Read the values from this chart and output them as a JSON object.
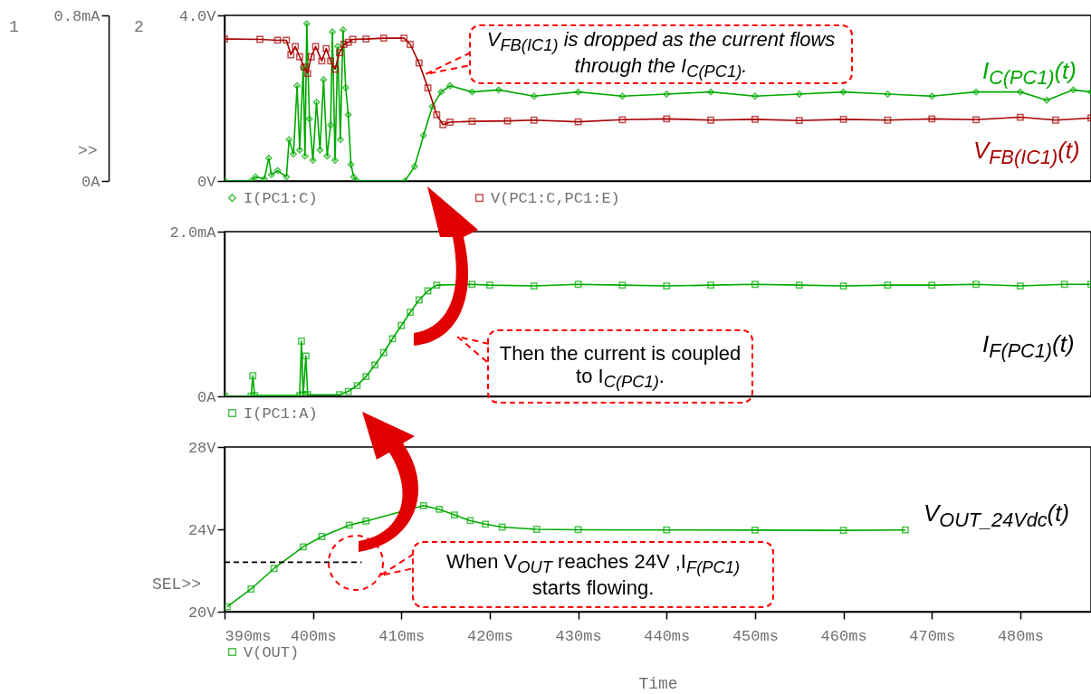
{
  "chart_data": [
    {
      "type": "line",
      "xlim": [
        390,
        488
      ],
      "tick_labels": "y",
      "legend": "bottom left",
      "ylim": [
        0,
        0.8
      ],
      "yticks": [
        {
          "value": 0,
          "label": "0A"
        },
        {
          "value": 0.8,
          "label": "0.8mA"
        }
      ],
      "y2lim": [
        0,
        4
      ],
      "y2ticks": [
        {
          "value": 0,
          "label": "0V"
        },
        {
          "value": 4,
          "label": "4.0V"
        }
      ],
      "series": [
        {
          "name": "I(PC1:C)",
          "color": "#00aa00",
          "marker": "diamond",
          "x": [
            390,
            393,
            393.5,
            394.5,
            395,
            395.3,
            396,
            397,
            397.3,
            397.8,
            398.2,
            398.5,
            398.9,
            399.1,
            399.3,
            399.6,
            400,
            400.4,
            400.8,
            401.2,
            401.6,
            402,
            402.2,
            402.5,
            402.8,
            403.1,
            403.4,
            403.7,
            404,
            404.3,
            404.6,
            405,
            410.4,
            411.5,
            412.5,
            413.5,
            414.5,
            415.5,
            418,
            421,
            425,
            430,
            435,
            440,
            445,
            450,
            455,
            460,
            465,
            470,
            475,
            480,
            483,
            486,
            488
          ],
          "values": [
            0,
            0,
            0.02,
            0.01,
            0.11,
            0.03,
            0.05,
            0.02,
            0.2,
            0.13,
            0.46,
            0.15,
            0.55,
            0.12,
            0.76,
            0.3,
            0.1,
            0.38,
            0.15,
            0.49,
            0.12,
            0.27,
            0.72,
            0.1,
            0.65,
            0.2,
            0.73,
            0.45,
            0.32,
            0.08,
            0.02,
            0,
            0,
            0.07,
            0.22,
            0.36,
            0.43,
            0.46,
            0.43,
            0.44,
            0.41,
            0.43,
            0.41,
            0.42,
            0.43,
            0.41,
            0.42,
            0.43,
            0.42,
            0.41,
            0.43,
            0.43,
            0.39,
            0.44,
            0.43
          ]
        },
        {
          "name": "V(PC1:C,PC1:E)",
          "color": "#aa0000",
          "marker": "square",
          "axis": "y2",
          "x": [
            390,
            394,
            396,
            397,
            397.5,
            398,
            398.5,
            399,
            399.4,
            399.8,
            400.3,
            401,
            401.5,
            402,
            402.5,
            403,
            403.5,
            404,
            404.5,
            406,
            408,
            410.3,
            411,
            412,
            413,
            414,
            414.7,
            415.5,
            418,
            422,
            425,
            430,
            435,
            440,
            445,
            450,
            455,
            460,
            465,
            470,
            475,
            480,
            484,
            488
          ],
          "values": [
            3.43,
            3.42,
            3.4,
            3.4,
            3.05,
            3.25,
            3.0,
            2.75,
            2.6,
            3.0,
            3.25,
            2.9,
            3.2,
            2.9,
            2.7,
            3.1,
            3.3,
            3.35,
            3.42,
            3.43,
            3.45,
            3.45,
            3.3,
            2.85,
            2.25,
            1.6,
            1.36,
            1.42,
            1.44,
            1.45,
            1.47,
            1.43,
            1.48,
            1.5,
            1.47,
            1.49,
            1.46,
            1.49,
            1.47,
            1.5,
            1.48,
            1.54,
            1.47,
            1.52
          ]
        }
      ],
      "annotations": [
        "1",
        "2",
        ">>",
        "V$_{FB(IC1)}$ is dropped as the current flows through the I$_{C(PC1)}$.",
        "I$_{C(PC1)}$(t)",
        "V$_{FB(IC1)}$(t)"
      ]
    },
    {
      "type": "line",
      "xlim": [
        390,
        488
      ],
      "tick_labels": "y",
      "legend": "bottom left",
      "ylim": [
        0,
        2
      ],
      "yticks": [
        {
          "value": 0,
          "label": "0A"
        },
        {
          "value": 2,
          "label": "2.0mA"
        }
      ],
      "series": [
        {
          "name": "I(PC1:A)",
          "color": "#00aa00",
          "marker": "square",
          "x": [
            390,
            393,
            393.2,
            393.4,
            398.5,
            398.7,
            398.9,
            399.2,
            399.4,
            403,
            404,
            405,
            406,
            407,
            408,
            409,
            410,
            411,
            412,
            413,
            414,
            418,
            420,
            425,
            430,
            435,
            440,
            445,
            450,
            455,
            460,
            465,
            470,
            475,
            480,
            485,
            488
          ],
          "values": [
            0,
            0,
            0.25,
            0.01,
            0.01,
            0.67,
            0.02,
            0.49,
            0.02,
            0.02,
            0.06,
            0.13,
            0.24,
            0.38,
            0.53,
            0.7,
            0.86,
            1.02,
            1.17,
            1.28,
            1.35,
            1.36,
            1.35,
            1.34,
            1.36,
            1.35,
            1.34,
            1.35,
            1.36,
            1.35,
            1.34,
            1.35,
            1.35,
            1.36,
            1.34,
            1.36,
            1.36
          ]
        }
      ],
      "annotations": [
        "Then the current is coupled to I$_{C(PC1)}$.",
        "I$_{F(PC1)}$(t)"
      ]
    },
    {
      "type": "line",
      "xlim": [
        390,
        488
      ],
      "xlabel": "Time",
      "legend": "bottom left",
      "xticks": [
        {
          "value": 390,
          "label": "390ms"
        },
        {
          "value": 400,
          "label": "400ms"
        },
        {
          "value": 410,
          "label": "410ms"
        },
        {
          "value": 420,
          "label": "420ms"
        },
        {
          "value": 430,
          "label": "430ms"
        },
        {
          "value": 440,
          "label": "440ms"
        },
        {
          "value": 450,
          "label": "450ms"
        },
        {
          "value": 460,
          "label": "460ms"
        },
        {
          "value": 470,
          "label": "470ms"
        },
        {
          "value": 480,
          "label": "480ms"
        }
      ],
      "ylim": [
        20,
        28
      ],
      "yticks": [
        {
          "value": 20,
          "label": "20V"
        },
        {
          "value": 24,
          "label": "24V"
        },
        {
          "value": 28,
          "label": "28V"
        }
      ],
      "series": [
        {
          "name": "V(OUT)",
          "color": "#00aa00",
          "marker": "square",
          "x": [
            390.3,
            393,
            395.6,
            398.9,
            401,
            404.1,
            406,
            412.5,
            414.3,
            416,
            417.8,
            419.5,
            421.4,
            425.3,
            430,
            440,
            450,
            460,
            467
          ],
          "values": [
            20.24,
            21.1,
            22.1,
            23.15,
            23.65,
            24.2,
            24.4,
            25.15,
            24.97,
            24.7,
            24.42,
            24.25,
            24.11,
            24.0,
            23.98,
            23.97,
            23.96,
            23.95,
            23.97
          ]
        },
        {
          "type": "line",
          "color": "#000000",
          "line_style": "dashed",
          "x": [
            390,
            405.5
          ],
          "values": [
            22.4,
            22.4
          ]
        }
      ],
      "annotations": [
        "SEL>>",
        "V$_{OUT_24Vdc}$(t)",
        "When V$_{OUT}$ reaches 24V ,I$_{F(PC1)}$ starts flowing."
      ]
    }
  ]
}
